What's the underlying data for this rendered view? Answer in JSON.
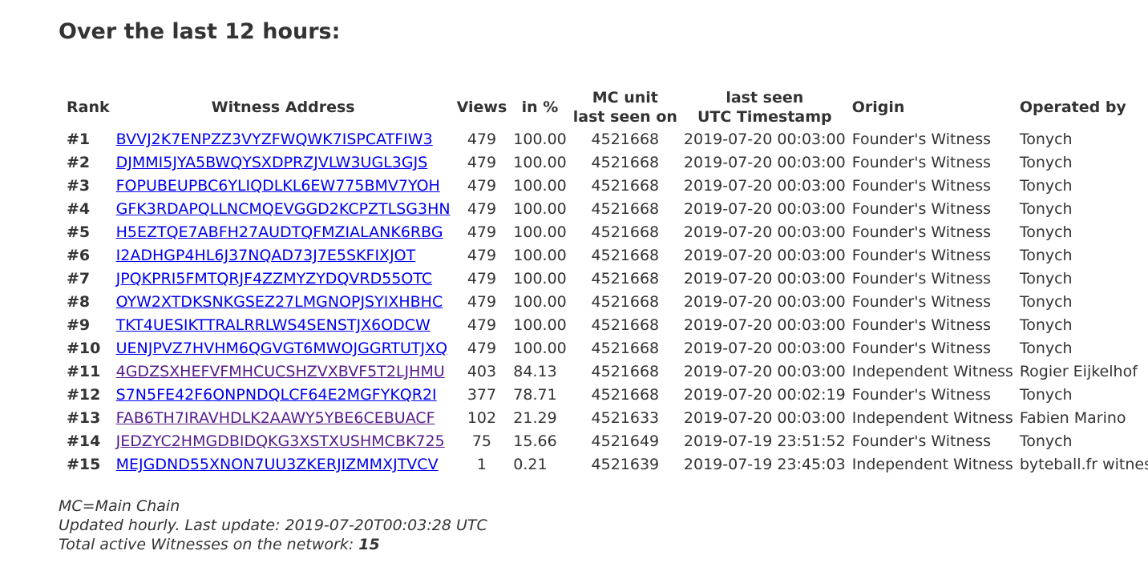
{
  "title": "Over the last 12 hours:",
  "table": {
    "headers": {
      "rank": "Rank",
      "address": "Witness Address",
      "views": "Views",
      "percent": "in %",
      "mc_line1": "MC unit",
      "mc_line2": "last seen on",
      "ts_line1": "last seen",
      "ts_line2": "UTC Timestamp",
      "origin": "Origin",
      "operator": "Operated by"
    },
    "rows": [
      {
        "rank": "#1",
        "address": "BVVJ2K7ENPZZ3VYZFWQWK7ISPCATFIW3",
        "views": "479",
        "percent": "100.00",
        "mc_unit": "4521668",
        "timestamp": "2019-07-20 00:03:00",
        "origin": "Founder's Witness",
        "operator": "Tonych",
        "visited": false
      },
      {
        "rank": "#2",
        "address": "DJMMI5JYA5BWQYSXDPRZJVLW3UGL3GJS",
        "views": "479",
        "percent": "100.00",
        "mc_unit": "4521668",
        "timestamp": "2019-07-20 00:03:00",
        "origin": "Founder's Witness",
        "operator": "Tonych",
        "visited": false
      },
      {
        "rank": "#3",
        "address": "FOPUBEUPBC6YLIQDLKL6EW775BMV7YOH",
        "views": "479",
        "percent": "100.00",
        "mc_unit": "4521668",
        "timestamp": "2019-07-20 00:03:00",
        "origin": "Founder's Witness",
        "operator": "Tonych",
        "visited": false
      },
      {
        "rank": "#4",
        "address": "GFK3RDAPQLLNCMQEVGGD2KCPZTLSG3HN",
        "views": "479",
        "percent": "100.00",
        "mc_unit": "4521668",
        "timestamp": "2019-07-20 00:03:00",
        "origin": "Founder's Witness",
        "operator": "Tonych",
        "visited": false
      },
      {
        "rank": "#5",
        "address": "H5EZTQE7ABFH27AUDTQFMZIALANK6RBG",
        "views": "479",
        "percent": "100.00",
        "mc_unit": "4521668",
        "timestamp": "2019-07-20 00:03:00",
        "origin": "Founder's Witness",
        "operator": "Tonych",
        "visited": false
      },
      {
        "rank": "#6",
        "address": "I2ADHGP4HL6J37NQAD73J7E5SKFIXJOT",
        "views": "479",
        "percent": "100.00",
        "mc_unit": "4521668",
        "timestamp": "2019-07-20 00:03:00",
        "origin": "Founder's Witness",
        "operator": "Tonych",
        "visited": false
      },
      {
        "rank": "#7",
        "address": "JPQKPRI5FMTQRJF4ZZMYZYDQVRD55OTC",
        "views": "479",
        "percent": "100.00",
        "mc_unit": "4521668",
        "timestamp": "2019-07-20 00:03:00",
        "origin": "Founder's Witness",
        "operator": "Tonych",
        "visited": false
      },
      {
        "rank": "#8",
        "address": "OYW2XTDKSNKGSEZ27LMGNOPJSYIXHBHC",
        "views": "479",
        "percent": "100.00",
        "mc_unit": "4521668",
        "timestamp": "2019-07-20 00:03:00",
        "origin": "Founder's Witness",
        "operator": "Tonych",
        "visited": false
      },
      {
        "rank": "#9",
        "address": "TKT4UESIKTTRALRRLWS4SENSTJX6ODCW",
        "views": "479",
        "percent": "100.00",
        "mc_unit": "4521668",
        "timestamp": "2019-07-20 00:03:00",
        "origin": "Founder's Witness",
        "operator": "Tonych",
        "visited": false
      },
      {
        "rank": "#10",
        "address": "UENJPVZ7HVHM6QGVGT6MWOJGGRTUTJXQ",
        "views": "479",
        "percent": "100.00",
        "mc_unit": "4521668",
        "timestamp": "2019-07-20 00:03:00",
        "origin": "Founder's Witness",
        "operator": "Tonych",
        "visited": false
      },
      {
        "rank": "#11",
        "address": "4GDZSXHEFVFMHCUCSHZVXBVF5T2LJHMU",
        "views": "403",
        "percent": "84.13",
        "mc_unit": "4521668",
        "timestamp": "2019-07-20 00:03:00",
        "origin": "Independent Witness",
        "operator": "Rogier Eijkelhof",
        "visited": true
      },
      {
        "rank": "#12",
        "address": "S7N5FE42F6ONPNDQLCF64E2MGFYKQR2I",
        "views": "377",
        "percent": "78.71",
        "mc_unit": "4521668",
        "timestamp": "2019-07-20 00:02:19",
        "origin": "Founder's Witness",
        "operator": "Tonych",
        "visited": false
      },
      {
        "rank": "#13",
        "address": "FAB6TH7IRAVHDLK2AAWY5YBE6CEBUACF",
        "views": "102",
        "percent": "21.29",
        "mc_unit": "4521633",
        "timestamp": "2019-07-20 00:03:00",
        "origin": "Independent Witness",
        "operator": "Fabien Marino",
        "visited": true
      },
      {
        "rank": "#14",
        "address": "JEDZYC2HMGDBIDQKG3XSTXUSHMCBK725",
        "views": "75",
        "percent": "15.66",
        "mc_unit": "4521649",
        "timestamp": "2019-07-19 23:51:52",
        "origin": "Founder's Witness",
        "operator": "Tonych",
        "visited": true
      },
      {
        "rank": "#15",
        "address": "MEJGDND55XNON7UU3ZKERJIZMMXJTVCV",
        "views": "1",
        "percent": "0.21",
        "mc_unit": "4521639",
        "timestamp": "2019-07-19 23:45:03",
        "origin": "Independent Witness",
        "operator": "byteball.fr witness",
        "visited": false
      }
    ]
  },
  "footer": {
    "mc_note": "MC=Main Chain",
    "updated": "Updated hourly. Last update: 2019-07-20T00:03:28 UTC",
    "active_label": "Total active Witnesses on the network:",
    "active_count": "15"
  },
  "colors": {
    "text": "#333333",
    "link": "#0000ee",
    "visited_link": "#551a8b"
  }
}
